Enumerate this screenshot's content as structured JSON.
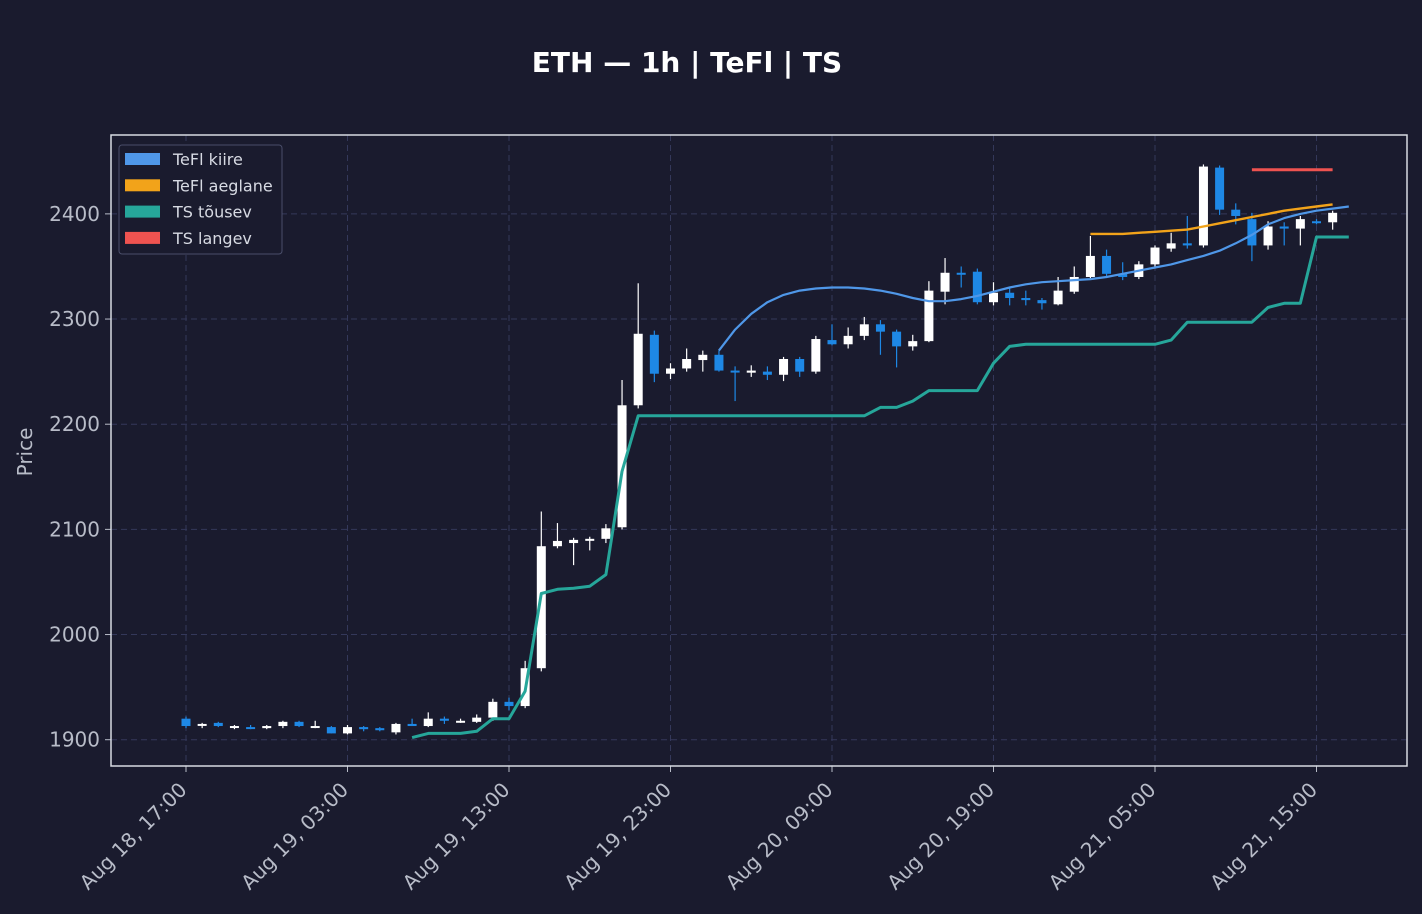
{
  "chart_data": {
    "type": "candlestick",
    "title": "ETH — 1h  |  TeFl  |  TS",
    "xlabel": "",
    "ylabel": "Price",
    "ylim": [
      1875,
      2475
    ],
    "yticks": [
      1900,
      2000,
      2100,
      2200,
      2300,
      2400
    ],
    "xticks": [
      {
        "i": 0,
        "label": "Aug 18, 17:00"
      },
      {
        "i": 10,
        "label": "Aug 19, 03:00"
      },
      {
        "i": 20,
        "label": "Aug 19, 13:00"
      },
      {
        "i": 30,
        "label": "Aug 19, 23:00"
      },
      {
        "i": 40,
        "label": "Aug 20, 09:00"
      },
      {
        "i": 50,
        "label": "Aug 20, 19:00"
      },
      {
        "i": 60,
        "label": "Aug 21, 05:00"
      },
      {
        "i": 70,
        "label": "Aug 21, 15:00"
      }
    ],
    "grid": true,
    "legend_position": "upper-left",
    "colors": {
      "up_candle": "#ffffff",
      "down_candle": "#1e88e5",
      "tefl_fast": "#4f97e8",
      "tefl_slow": "#f2a31a",
      "ts_up": "#26a69a",
      "ts_down": "#ef5350",
      "grid": "#34385a",
      "background": "#1a1b2e"
    },
    "legend": [
      {
        "label": "TeFl kiire",
        "color": "#4f97e8"
      },
      {
        "label": "TeFl aeglane",
        "color": "#f2a31a"
      },
      {
        "label": "TS tõusev",
        "color": "#26a69a"
      },
      {
        "label": "TS langev",
        "color": "#ef5350"
      }
    ],
    "ohlc": [
      [
        1920,
        1922,
        1911,
        1913
      ],
      [
        1914,
        1916,
        1911,
        1915
      ],
      [
        1916,
        1917,
        1912,
        1913
      ],
      [
        1912,
        1914,
        1910,
        1913
      ],
      [
        1912,
        1914,
        1910,
        1911
      ],
      [
        1911,
        1914,
        1910,
        1913
      ],
      [
        1913,
        1918,
        1911,
        1917
      ],
      [
        1917,
        1918,
        1912,
        1913
      ],
      [
        1913,
        1918,
        1911,
        1913
      ],
      [
        1912,
        1913,
        1906,
        1906
      ],
      [
        1906,
        1914,
        1905,
        1912
      ],
      [
        1912,
        1913,
        1908,
        1910
      ],
      [
        1911,
        1912,
        1908,
        1909
      ],
      [
        1907,
        1916,
        1905,
        1915
      ],
      [
        1915,
        1920,
        1913,
        1913
      ],
      [
        1913,
        1926,
        1912,
        1920
      ],
      [
        1920,
        1922,
        1915,
        1918
      ],
      [
        1917,
        1920,
        1916,
        1918
      ],
      [
        1917,
        1924,
        1916,
        1921
      ],
      [
        1921,
        1939,
        1918,
        1936
      ],
      [
        1936,
        1940,
        1928,
        1932
      ],
      [
        1932,
        1975,
        1930,
        1968
      ],
      [
        1968,
        2117,
        1965,
        2084
      ],
      [
        2084,
        2106,
        2082,
        2089
      ],
      [
        2087,
        2092,
        2066,
        2090
      ],
      [
        2090,
        2093,
        2080,
        2091
      ],
      [
        2091,
        2105,
        2087,
        2101
      ],
      [
        2102,
        2242,
        2100,
        2218
      ],
      [
        2218,
        2334,
        2215,
        2286
      ],
      [
        2285,
        2289,
        2240,
        2248
      ],
      [
        2248,
        2258,
        2243,
        2253
      ],
      [
        2253,
        2272,
        2250,
        2262
      ],
      [
        2261,
        2270,
        2250,
        2266
      ],
      [
        2266,
        2270,
        2250,
        2251
      ],
      [
        2251,
        2255,
        2222,
        2250
      ],
      [
        2249,
        2256,
        2245,
        2251
      ],
      [
        2250,
        2255,
        2242,
        2247
      ],
      [
        2247,
        2264,
        2241,
        2262
      ],
      [
        2262,
        2264,
        2245,
        2250
      ],
      [
        2250,
        2284,
        2248,
        2281
      ],
      [
        2280,
        2295,
        2275,
        2276
      ],
      [
        2276,
        2292,
        2272,
        2284
      ],
      [
        2284,
        2302,
        2280,
        2295
      ],
      [
        2295,
        2299,
        2266,
        2288
      ],
      [
        2288,
        2290,
        2254,
        2274
      ],
      [
        2274,
        2285,
        2270,
        2279
      ],
      [
        2279,
        2336,
        2278,
        2327
      ],
      [
        2326,
        2358,
        2314,
        2344
      ],
      [
        2344,
        2350,
        2330,
        2343
      ],
      [
        2345,
        2348,
        2314,
        2316
      ],
      [
        2316,
        2335,
        2313,
        2325
      ],
      [
        2325,
        2330,
        2313,
        2320
      ],
      [
        2320,
        2327,
        2313,
        2318
      ],
      [
        2318,
        2320,
        2309,
        2315
      ],
      [
        2314,
        2340,
        2313,
        2327
      ],
      [
        2326,
        2350,
        2324,
        2340
      ],
      [
        2340,
        2379,
        2339,
        2360
      ],
      [
        2360,
        2366,
        2339,
        2343
      ],
      [
        2343,
        2354,
        2337,
        2340
      ],
      [
        2340,
        2355,
        2338,
        2352
      ],
      [
        2352,
        2370,
        2348,
        2368
      ],
      [
        2367,
        2382,
        2364,
        2372
      ],
      [
        2372,
        2398,
        2367,
        2370
      ],
      [
        2370,
        2447,
        2368,
        2445
      ],
      [
        2444,
        2446,
        2399,
        2404
      ],
      [
        2404,
        2410,
        2390,
        2398
      ],
      [
        2395,
        2401,
        2355,
        2370
      ],
      [
        2370,
        2393,
        2366,
        2388
      ],
      [
        2388,
        2392,
        2370,
        2386
      ],
      [
        2386,
        2398,
        2370,
        2395
      ],
      [
        2393,
        2395,
        2390,
        2392
      ],
      [
        2392,
        2403,
        2385,
        2401
      ]
    ],
    "series": [
      {
        "name": "TeFl kiire",
        "start_index": 33,
        "values": [
          2270,
          2290,
          2305,
          2316,
          2323,
          2327,
          2329,
          2330,
          2330,
          2329,
          2327,
          2324,
          2320,
          2317,
          2317,
          2319,
          2322,
          2326,
          2330,
          2333,
          2335,
          2336,
          2337,
          2338,
          2340,
          2343,
          2346,
          2349,
          2352,
          2356,
          2360,
          2365,
          2372,
          2380,
          2390,
          2396,
          2400,
          2403,
          2405,
          2407
        ]
      },
      {
        "name": "TeFl aeglane",
        "start_index": 56,
        "values": [
          2381,
          2381,
          2381,
          2382,
          2383,
          2384,
          2385,
          2388,
          2391,
          2394,
          2397,
          2400,
          2403,
          2405,
          2407,
          2409
        ]
      },
      {
        "name": "TS tõusev",
        "start_index": 14,
        "values": [
          1902,
          1906,
          1906,
          1906,
          1908,
          1920,
          1920,
          1946,
          2039,
          2043,
          2044,
          2046,
          2057,
          2155,
          2208,
          2208,
          2208,
          2208,
          2208,
          2208,
          2208,
          2208,
          2208,
          2208,
          2208,
          2208,
          2208,
          2208,
          2208,
          2216,
          2216,
          2222,
          2232,
          2232,
          2232,
          2232,
          2258,
          2274,
          2276,
          2276,
          2276,
          2276,
          2276,
          2276,
          2276,
          2276,
          2276,
          2280,
          2297,
          2297,
          2297,
          2297,
          2297,
          2311,
          2315,
          2315,
          2378,
          2378,
          2378
        ]
      },
      {
        "name": "TS langev",
        "start_index": 66,
        "values": [
          2442,
          2442,
          2442,
          2442,
          2442,
          2442
        ]
      }
    ]
  }
}
